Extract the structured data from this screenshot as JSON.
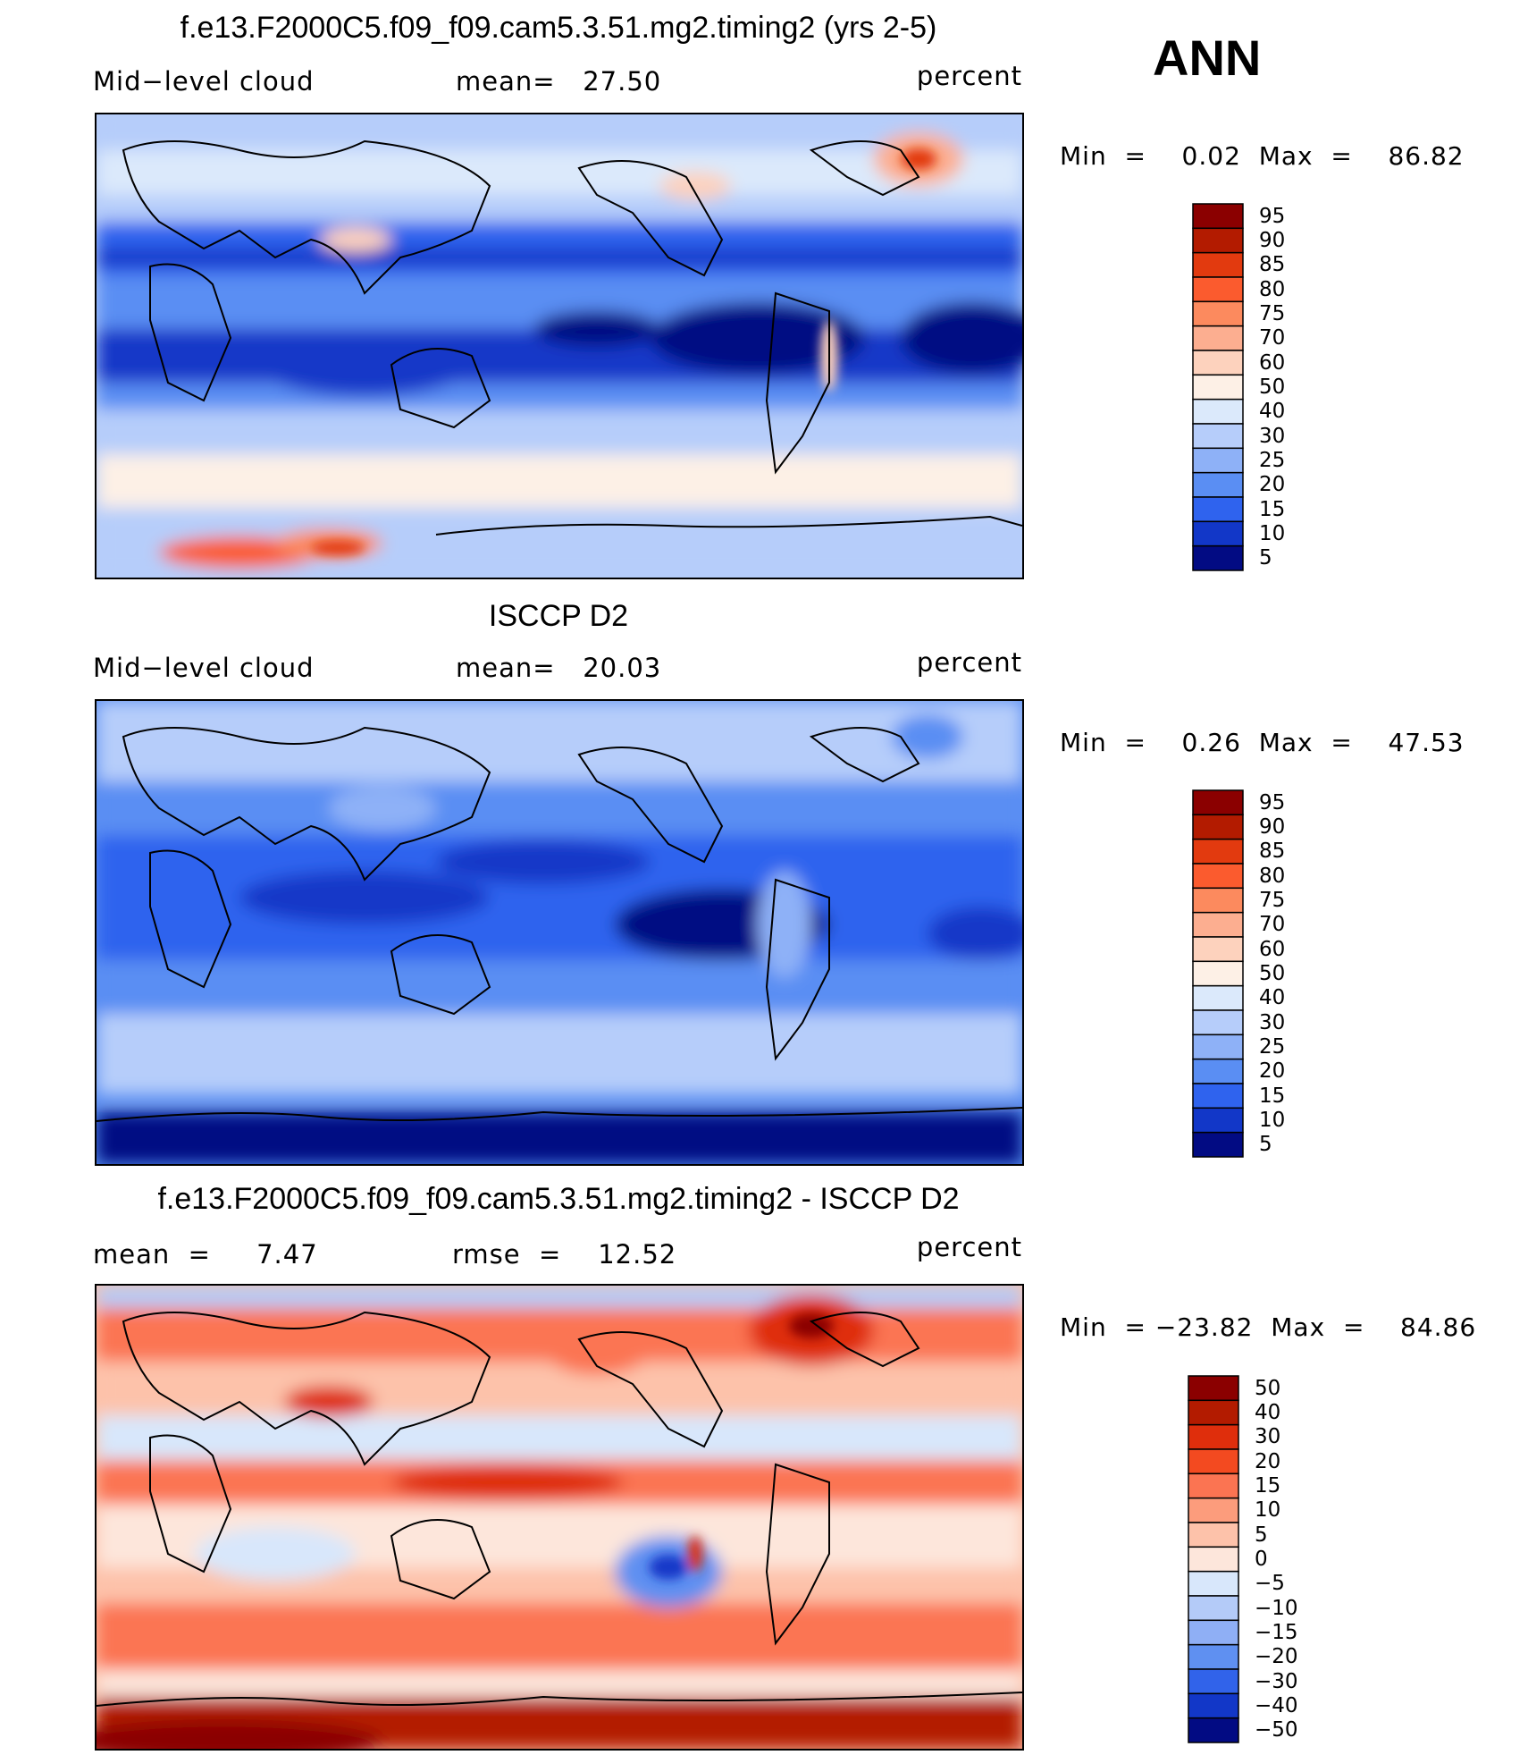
{
  "season": "ANN",
  "panels": [
    {
      "title": "f.e13.F2000C5.f09_f09.cam5.3.51.mg2.timing2 (yrs 2-5)",
      "left": "Mid−level cloud",
      "middle": "mean=   27.50",
      "right": "percent",
      "minmax": "Min  =    0.02  Max  =    86.82",
      "scheme": "cloud_model",
      "levels": [
        "95",
        "90",
        "85",
        "80",
        "75",
        "70",
        "60",
        "50",
        "40",
        "30",
        "25",
        "20",
        "15",
        "10",
        "5"
      ]
    },
    {
      "title": "ISCCP D2",
      "left": "Mid−level cloud",
      "middle": "mean=   20.03",
      "right": "percent",
      "minmax": "Min  =    0.26  Max  =    47.53",
      "scheme": "cloud_obs",
      "levels": [
        "95",
        "90",
        "85",
        "80",
        "75",
        "70",
        "60",
        "50",
        "40",
        "30",
        "25",
        "20",
        "15",
        "10",
        "5"
      ]
    },
    {
      "title": "f.e13.F2000C5.f09_f09.cam5.3.51.mg2.timing2 - ISCCP D2",
      "left": "mean  =     7.47",
      "middle": "rmse  =    12.52",
      "right": "percent",
      "minmax": "Min  = −23.82  Max  =    84.86",
      "scheme": "diff",
      "levels": [
        "50",
        "40",
        "30",
        "20",
        "15",
        "10",
        "5",
        "0",
        "−5",
        "−10",
        "−15",
        "−20",
        "−30",
        "−40",
        "−50"
      ]
    }
  ],
  "colors": {
    "cloud_scale": [
      "#8b0000",
      "#b31b00",
      "#e23a0f",
      "#fb5b2e",
      "#fc8a5e",
      "#fcae90",
      "#fdd2bd",
      "#fdf0e6",
      "#dbe9fb",
      "#b6cdfa",
      "#8eb1f7",
      "#5a8ef3",
      "#2f63ee",
      "#1237c8",
      "#020b83"
    ],
    "diff_scale": [
      "#8b0000",
      "#b31b00",
      "#df2e0c",
      "#f34a20",
      "#fb7452",
      "#fc9c7c",
      "#fdc2aa",
      "#fde6db",
      "#d8e7fb",
      "#b4cbf8",
      "#8faff5",
      "#5f90f1",
      "#3163ea",
      "#1237c8",
      "#020b83"
    ]
  }
}
